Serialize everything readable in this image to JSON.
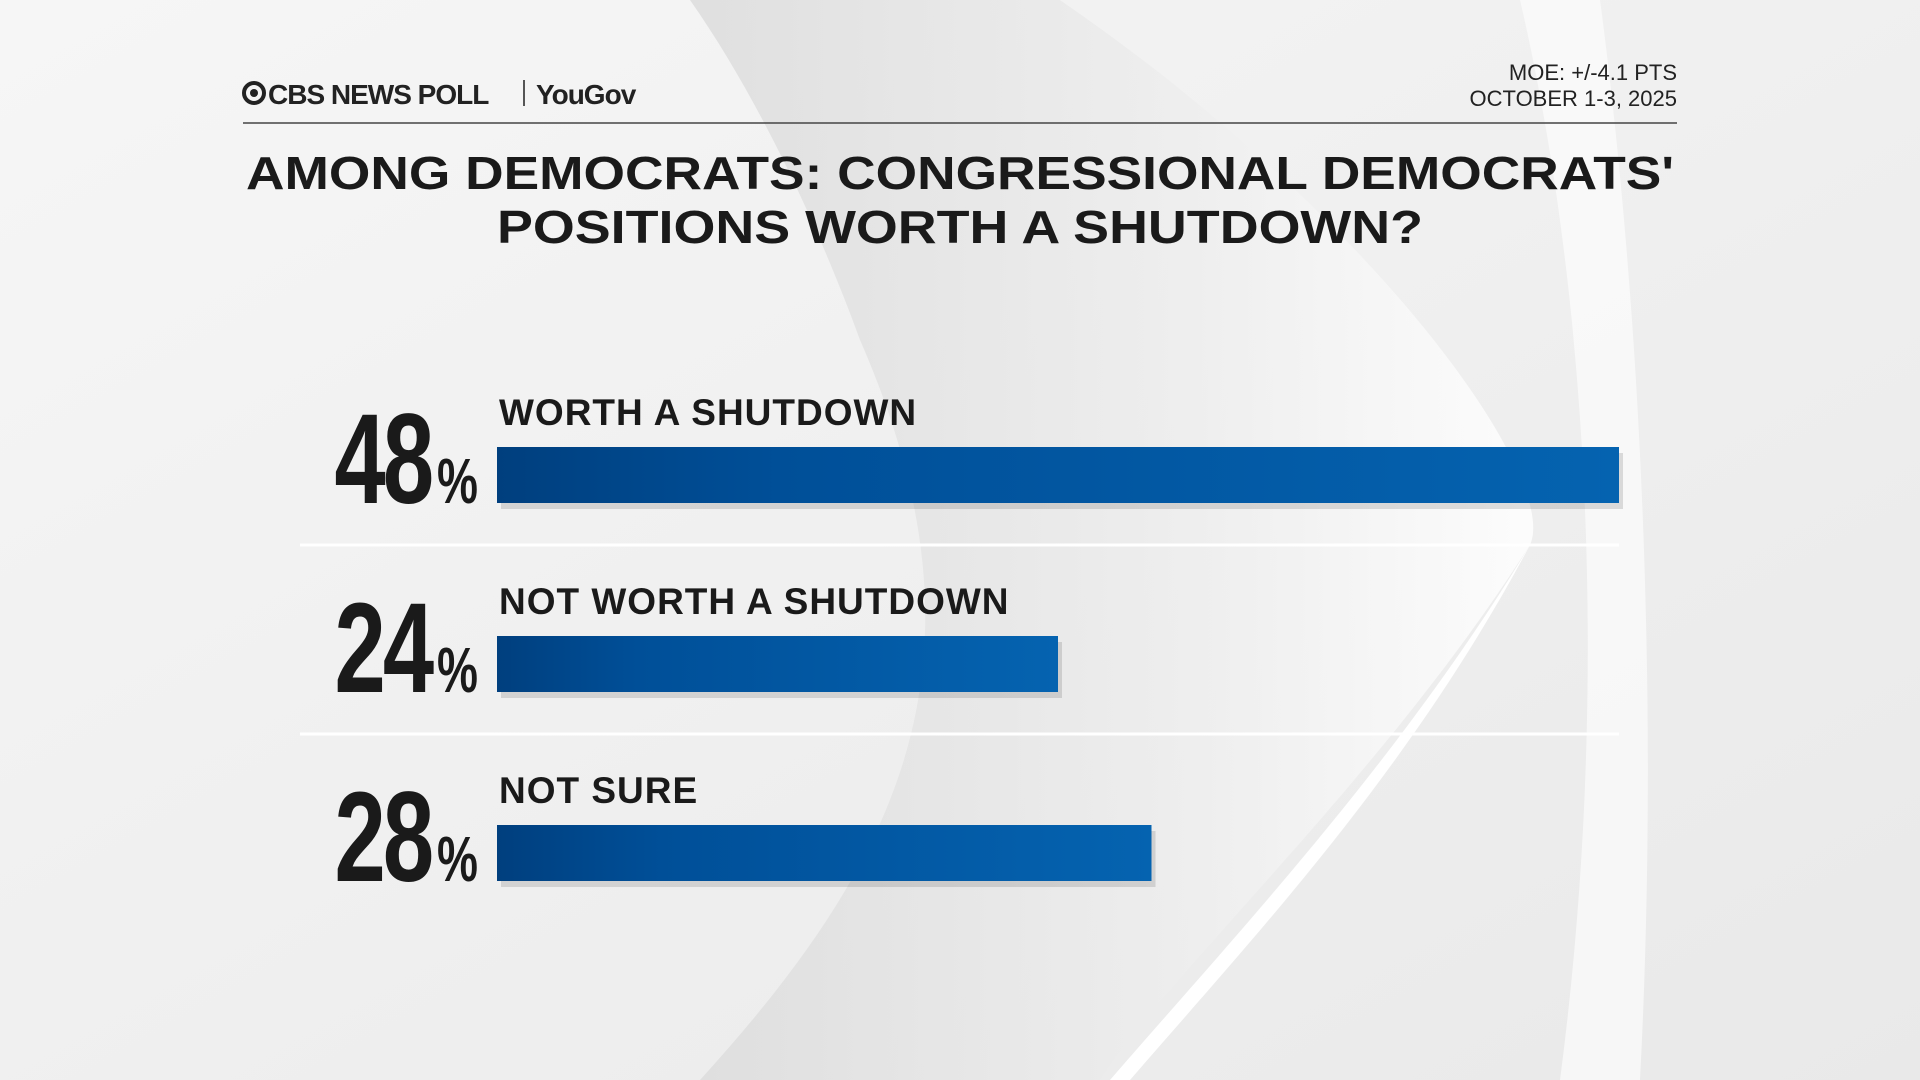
{
  "chart_data": {
    "type": "bar",
    "source": "CBS NEWS POLL",
    "partner": "YouGov",
    "notes": [
      "MOE: +/-4.1 PTS",
      "OCTOBER 1-3, 2025"
    ],
    "title": [
      "AMONG DEMOCRATS: CONGRESSIONAL DEMOCRATS'",
      "POSITIONS WORTH A SHUTDOWN?"
    ],
    "categories": [
      "WORTH A SHUTDOWN",
      "NOT WORTH A SHUTDOWN",
      "NOT SURE"
    ],
    "values": [
      48,
      24,
      28
    ],
    "value_labels": [
      "48%",
      "24%",
      "28%"
    ],
    "color": "#0563b0"
  }
}
